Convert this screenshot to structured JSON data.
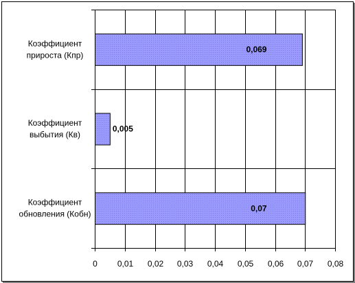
{
  "chart_data": {
    "type": "bar",
    "orientation": "horizontal",
    "categories": [
      [
        "Коэффициент",
        "прироста (Кпр)"
      ],
      [
        "Коэффициент",
        "выбытия (Кв)"
      ],
      [
        "Коэффициент",
        "обновления (Кобн)"
      ]
    ],
    "values": [
      0.069,
      0.005,
      0.07
    ],
    "value_labels": [
      "0,069",
      "0,005",
      "0,07"
    ],
    "x_ticks": [
      "0",
      "0,01",
      "0,02",
      "0,03",
      "0,04",
      "0,05",
      "0,06",
      "0,07",
      "0,08"
    ],
    "xlim": [
      0,
      0.08
    ],
    "grid": true,
    "legend": "none",
    "bar_color": "#9999ff",
    "bar_dot_color": "#7f7fd6"
  }
}
